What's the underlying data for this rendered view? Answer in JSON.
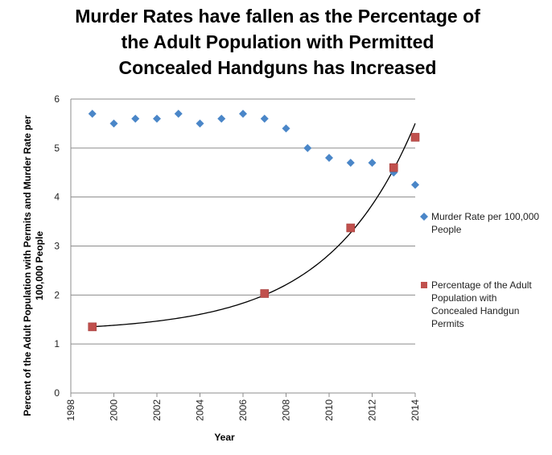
{
  "chart_data": {
    "type": "scatter",
    "title_lines": [
      "Murder Rates have fallen as the Percentage of",
      "the Adult Population with Permitted",
      "Concealed Handguns has Increased"
    ],
    "xlabel": "Year",
    "ylabel_lines": [
      "Percent of the Adult Population with Permits and Murder Rate per",
      "100,000 People"
    ],
    "xlim": [
      1998,
      2014
    ],
    "ylim": [
      0,
      6
    ],
    "x_ticks": [
      "1998",
      "2000",
      "2002",
      "2004",
      "2006",
      "2008",
      "2010",
      "2012",
      "2014"
    ],
    "y_ticks": [
      "0",
      "1",
      "2",
      "3",
      "4",
      "5",
      "6"
    ],
    "grid": "horizontal",
    "legend_position": "right",
    "series": [
      {
        "name": "Murder Rate per 100,000 People",
        "legend_lines": [
          "Murder Rate per 100,000",
          "People"
        ],
        "marker": "diamond",
        "color": "#4A86C8",
        "x": [
          1999,
          2000,
          2001,
          2002,
          2003,
          2004,
          2005,
          2006,
          2007,
          2008,
          2009,
          2010,
          2011,
          2012,
          2013,
          2014
        ],
        "y": [
          5.7,
          5.5,
          5.6,
          5.6,
          5.7,
          5.5,
          5.6,
          5.7,
          5.6,
          5.4,
          5.0,
          4.8,
          4.7,
          4.7,
          4.5,
          4.25
        ]
      },
      {
        "name": "Percentage of the Adult Population with Concealed Handgun Permits",
        "legend_lines": [
          "Percentage of the Adult",
          "Population with",
          "Concealed Handgun",
          "Permits"
        ],
        "marker": "square",
        "color": "#C0504D",
        "x": [
          1999,
          2007,
          2011,
          2013,
          2014
        ],
        "y": [
          1.35,
          2.03,
          3.37,
          4.6,
          5.22
        ],
        "trendline": "exponential"
      }
    ],
    "trendline_color": "#000000"
  }
}
